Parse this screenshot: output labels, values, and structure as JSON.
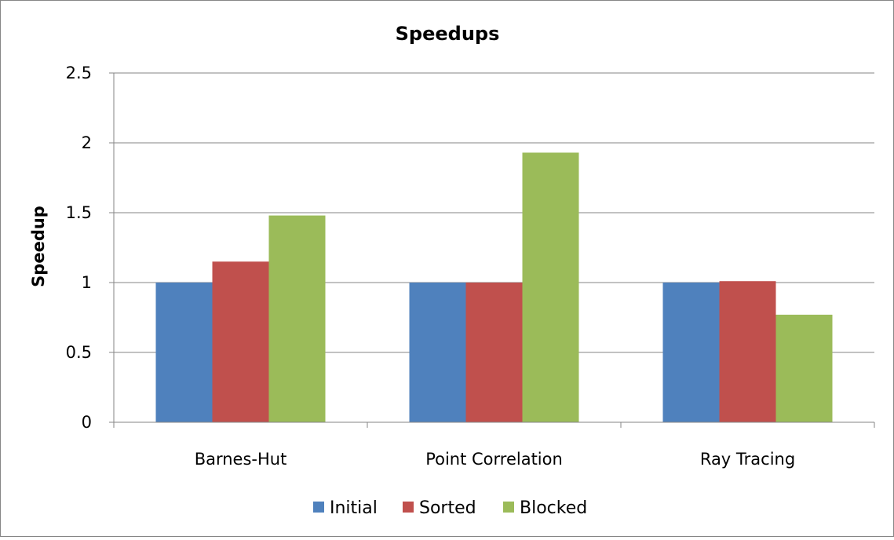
{
  "chart_data": {
    "type": "bar",
    "title": "Speedups",
    "xlabel": "",
    "ylabel": "Speedup",
    "categories": [
      "Barnes-Hut",
      "Point Correlation",
      "Ray Tracing"
    ],
    "series": [
      {
        "name": "Initial",
        "color": "#4F81BD",
        "values": [
          1.0,
          1.0,
          1.0
        ]
      },
      {
        "name": "Sorted",
        "color": "#C0504D",
        "values": [
          1.15,
          1.0,
          1.01
        ]
      },
      {
        "name": "Blocked",
        "color": "#9BBB59",
        "values": [
          1.48,
          1.93,
          0.77
        ]
      }
    ],
    "ylim": [
      0,
      2.5
    ],
    "yticks": [
      "0",
      "0.5",
      "1",
      "1.5",
      "2",
      "2.5"
    ],
    "ytick_values": [
      0,
      0.5,
      1,
      1.5,
      2,
      2.5
    ],
    "grid": true,
    "legend_position": "bottom"
  }
}
